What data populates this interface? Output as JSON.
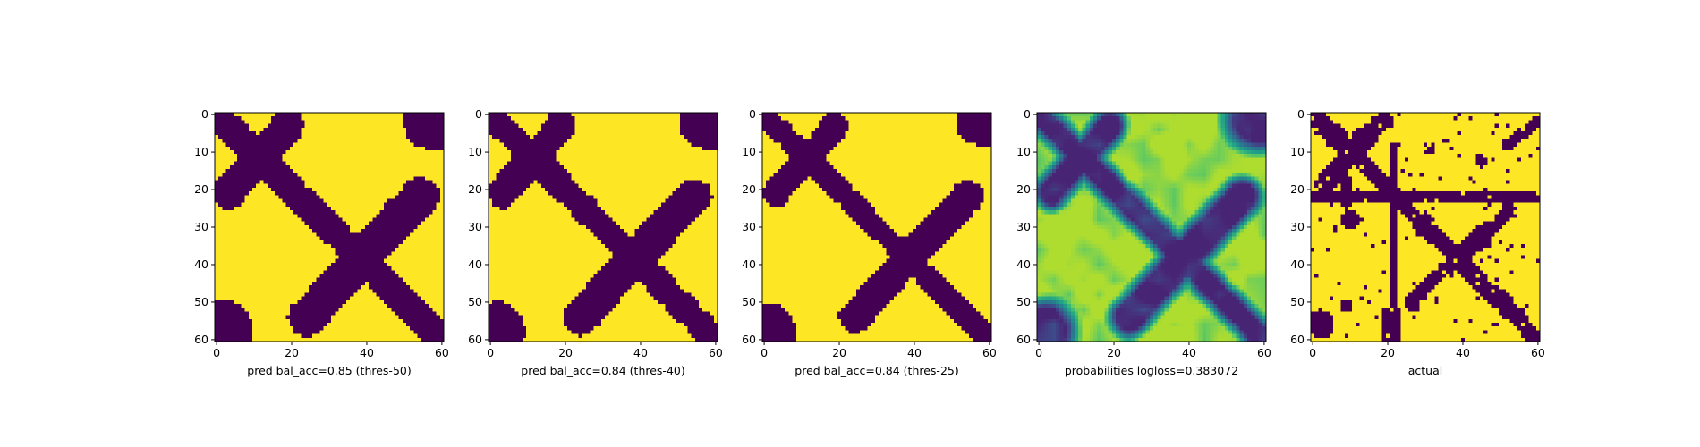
{
  "chart_data": [
    {
      "type": "heatmap",
      "title": "",
      "xlabel": "pred bal_acc=0.85 (thres-50)",
      "ylabel": "",
      "xlim": [
        0,
        60
      ],
      "ylim": [
        60,
        0
      ],
      "xticks": [
        0,
        20,
        40,
        60
      ],
      "yticks": [
        0,
        10,
        20,
        30,
        40,
        50,
        60
      ],
      "grid": false,
      "colormap": "viridis",
      "value_range": [
        0,
        1
      ],
      "grid_size": 61,
      "description_of_values": "binary mask: 0 (dark purple) on two crossing diagonal bands, 1 (yellow) elsewhere"
    },
    {
      "type": "heatmap",
      "title": "",
      "xlabel": "pred bal_acc=0.84 (thres-40)",
      "ylabel": "",
      "xlim": [
        0,
        60
      ],
      "ylim": [
        60,
        0
      ],
      "xticks": [
        0,
        20,
        40,
        60
      ],
      "yticks": [
        0,
        10,
        20,
        30,
        40,
        50,
        60
      ],
      "grid": false,
      "colormap": "viridis",
      "value_range": [
        0,
        1
      ],
      "grid_size": 61
    },
    {
      "type": "heatmap",
      "title": "",
      "xlabel": "pred bal_acc=0.84 (thres-25)",
      "ylabel": "",
      "xlim": [
        0,
        60
      ],
      "ylim": [
        60,
        0
      ],
      "xticks": [
        0,
        20,
        40,
        60
      ],
      "yticks": [
        0,
        10,
        20,
        30,
        40,
        50,
        60
      ],
      "grid": false,
      "colormap": "viridis",
      "value_range": [
        0,
        1
      ],
      "grid_size": 61
    },
    {
      "type": "heatmap",
      "title": "",
      "xlabel": "probabilities logloss=0.383072",
      "ylabel": "",
      "xlim": [
        0,
        60
      ],
      "ylim": [
        60,
        0
      ],
      "xticks": [
        0,
        20,
        40,
        60
      ],
      "yticks": [
        0,
        10,
        20,
        30,
        40,
        50,
        60
      ],
      "grid": false,
      "colormap": "viridis",
      "value_range": [
        0,
        1
      ],
      "grid_size": 61
    },
    {
      "type": "heatmap",
      "title": "",
      "xlabel": "actual",
      "ylabel": "",
      "xlim": [
        0,
        60
      ],
      "ylim": [
        60,
        0
      ],
      "xticks": [
        0,
        20,
        40,
        60
      ],
      "yticks": [
        0,
        10,
        20,
        30,
        40,
        50,
        60
      ],
      "grid": false,
      "colormap": "viridis",
      "value_range": [
        0,
        1
      ],
      "grid_size": 61
    }
  ],
  "colors": {
    "low": "#440154",
    "high": "#fde725",
    "mid_teal": "#21918c",
    "mid_green": "#5ec962"
  }
}
